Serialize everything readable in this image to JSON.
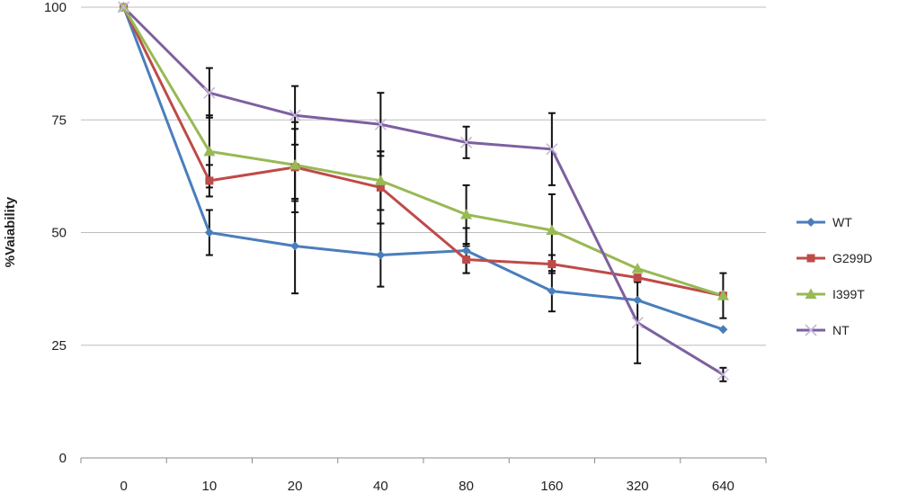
{
  "chart_data": {
    "type": "line",
    "title": "",
    "xlabel": "",
    "ylabel": "%Vaiability",
    "categories": [
      "0",
      "10",
      "20",
      "40",
      "80",
      "160",
      "320",
      "640"
    ],
    "ylim": [
      0,
      100
    ],
    "yticks": [
      0,
      25,
      50,
      75,
      100
    ],
    "grid": "horizontal",
    "legend": "right",
    "series": [
      {
        "name": "WT",
        "color": "#4a7ebb",
        "marker": "diamond",
        "values": [
          100,
          50,
          47,
          45,
          46,
          37,
          35,
          28.5
        ],
        "errors": [
          0,
          5,
          10.5,
          7,
          5,
          4.5,
          0,
          0
        ]
      },
      {
        "name": "G299D",
        "color": "#be4b48",
        "marker": "square",
        "values": [
          100,
          61.5,
          64.5,
          60,
          44,
          43,
          40,
          36
        ],
        "errors": [
          0,
          3.5,
          10,
          8,
          3,
          2,
          0,
          0
        ]
      },
      {
        "name": "I399T",
        "color": "#98b954",
        "marker": "triangle",
        "values": [
          100,
          68,
          65,
          61.5,
          54,
          50.5,
          42,
          36
        ],
        "errors": [
          0,
          8,
          8,
          6.5,
          6.5,
          8,
          0,
          5
        ]
      },
      {
        "name": "NT",
        "color": "#7d60a0",
        "marker": "x",
        "values": [
          100,
          81,
          76,
          74,
          70,
          68.5,
          30,
          18.5
        ],
        "errors": [
          0,
          5.5,
          6.5,
          7,
          3.5,
          8,
          9,
          1.5
        ]
      }
    ]
  }
}
